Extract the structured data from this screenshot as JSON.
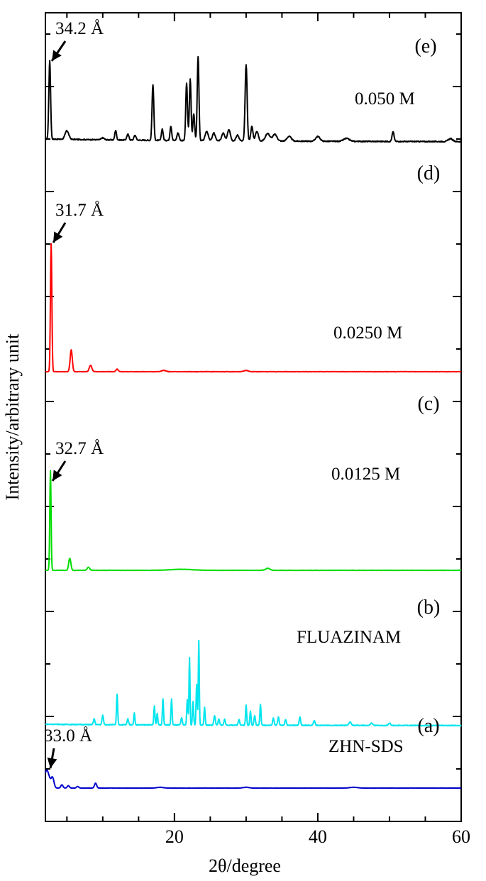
{
  "chart_data": {
    "type": "line",
    "title": "",
    "xlabel": "2θ/degree",
    "ylabel": "Intensity/arbitrary unit",
    "xlim": [
      2,
      60
    ],
    "xticks": [
      20,
      40,
      60
    ],
    "x_minor_step": 5,
    "grid": false,
    "legend": "none",
    "series": [
      {
        "panel": "(e)",
        "label": "0.050 M",
        "color": "#000000",
        "annotation": "34.2 Å",
        "annotation_x": 2.6,
        "baseline": 0.05,
        "noise": 0.01,
        "peaks": [
          [
            2.6,
            0.82,
            0.12
          ],
          [
            5.0,
            0.09,
            0.25
          ],
          [
            10.0,
            0.02,
            0.2
          ],
          [
            11.8,
            0.1,
            0.12
          ],
          [
            13.5,
            0.06,
            0.15
          ],
          [
            14.5,
            0.05,
            0.15
          ],
          [
            17.0,
            0.58,
            0.12
          ],
          [
            18.3,
            0.12,
            0.12
          ],
          [
            19.5,
            0.15,
            0.12
          ],
          [
            20.5,
            0.08,
            0.15
          ],
          [
            21.7,
            0.6,
            0.12
          ],
          [
            22.2,
            0.64,
            0.12
          ],
          [
            22.7,
            0.28,
            0.12
          ],
          [
            23.3,
            0.88,
            0.12
          ],
          [
            24.5,
            0.1,
            0.2
          ],
          [
            25.5,
            0.08,
            0.2
          ],
          [
            26.8,
            0.08,
            0.2
          ],
          [
            27.6,
            0.12,
            0.2
          ],
          [
            28.8,
            0.06,
            0.2
          ],
          [
            30.0,
            0.8,
            0.14
          ],
          [
            30.8,
            0.15,
            0.15
          ],
          [
            31.5,
            0.1,
            0.2
          ],
          [
            33.0,
            0.08,
            0.3
          ],
          [
            34.0,
            0.07,
            0.3
          ],
          [
            36.0,
            0.05,
            0.3
          ],
          [
            40.0,
            0.05,
            0.3
          ],
          [
            44.0,
            0.03,
            0.4
          ],
          [
            50.5,
            0.1,
            0.14
          ],
          [
            58.5,
            0.03,
            0.3
          ]
        ]
      },
      {
        "panel": "(d)",
        "label": "0.0250 M",
        "color": "#ff0000",
        "annotation": "31.7 Å",
        "annotation_x": 2.8,
        "baseline": 0.0,
        "noise": 0.003,
        "peaks": [
          [
            2.8,
            1.0,
            0.1
          ],
          [
            5.6,
            0.17,
            0.15
          ],
          [
            8.3,
            0.05,
            0.18
          ],
          [
            12.0,
            0.02,
            0.15
          ],
          [
            18.5,
            0.01,
            0.3
          ],
          [
            30.0,
            0.01,
            0.3
          ]
        ]
      },
      {
        "panel": "(c)",
        "label": "0.0125 M",
        "color": "#00dd00",
        "annotation": "32.7 Å",
        "annotation_x": 2.7,
        "baseline": 0.0,
        "noise": 0.003,
        "peaks": [
          [
            2.7,
            1.0,
            0.09
          ],
          [
            5.4,
            0.12,
            0.15
          ],
          [
            8.0,
            0.03,
            0.18
          ],
          [
            21.0,
            0.01,
            1.5
          ],
          [
            33.0,
            0.02,
            0.3
          ]
        ]
      },
      {
        "panel": "(b)",
        "label": "FLUAZINAM",
        "color": "#00e5ee",
        "annotation": "",
        "annotation_x": null,
        "baseline": 0.02,
        "noise": 0.006,
        "peaks": [
          [
            8.8,
            0.05,
            0.1
          ],
          [
            10.0,
            0.08,
            0.1
          ],
          [
            12.0,
            0.26,
            0.08
          ],
          [
            13.5,
            0.05,
            0.1
          ],
          [
            14.4,
            0.1,
            0.08
          ],
          [
            17.2,
            0.16,
            0.08
          ],
          [
            17.6,
            0.1,
            0.08
          ],
          [
            18.4,
            0.22,
            0.08
          ],
          [
            19.6,
            0.22,
            0.08
          ],
          [
            21.0,
            0.06,
            0.1
          ],
          [
            21.8,
            0.22,
            0.08
          ],
          [
            22.1,
            0.58,
            0.07
          ],
          [
            22.6,
            0.2,
            0.08
          ],
          [
            23.1,
            0.35,
            0.08
          ],
          [
            23.4,
            0.72,
            0.07
          ],
          [
            24.2,
            0.15,
            0.08
          ],
          [
            25.6,
            0.08,
            0.1
          ],
          [
            26.2,
            0.05,
            0.1
          ],
          [
            27.0,
            0.05,
            0.1
          ],
          [
            29.0,
            0.05,
            0.1
          ],
          [
            30.0,
            0.17,
            0.08
          ],
          [
            30.6,
            0.12,
            0.08
          ],
          [
            31.2,
            0.08,
            0.1
          ],
          [
            32.0,
            0.18,
            0.08
          ],
          [
            33.8,
            0.06,
            0.1
          ],
          [
            34.5,
            0.07,
            0.1
          ],
          [
            35.5,
            0.05,
            0.1
          ],
          [
            37.5,
            0.07,
            0.1
          ],
          [
            39.5,
            0.04,
            0.12
          ],
          [
            44.5,
            0.03,
            0.15
          ],
          [
            47.5,
            0.02,
            0.15
          ],
          [
            50.0,
            0.02,
            0.15
          ]
        ]
      },
      {
        "panel": "(a)",
        "label": "ZHN-SDS",
        "color": "#0000cc",
        "annotation": "33.0 Å",
        "annotation_x": 2.4,
        "baseline": 0.0,
        "noise": 0.002,
        "peaks": [
          [
            2.2,
            0.22,
            0.35
          ],
          [
            3.0,
            0.12,
            0.2
          ],
          [
            4.3,
            0.04,
            0.15
          ],
          [
            5.2,
            0.03,
            0.15
          ],
          [
            6.5,
            0.02,
            0.15
          ],
          [
            9.0,
            0.06,
            0.15
          ],
          [
            18.0,
            0.01,
            0.4
          ],
          [
            30.0,
            0.01,
            0.4
          ],
          [
            45.0,
            0.01,
            0.5
          ]
        ]
      }
    ]
  }
}
